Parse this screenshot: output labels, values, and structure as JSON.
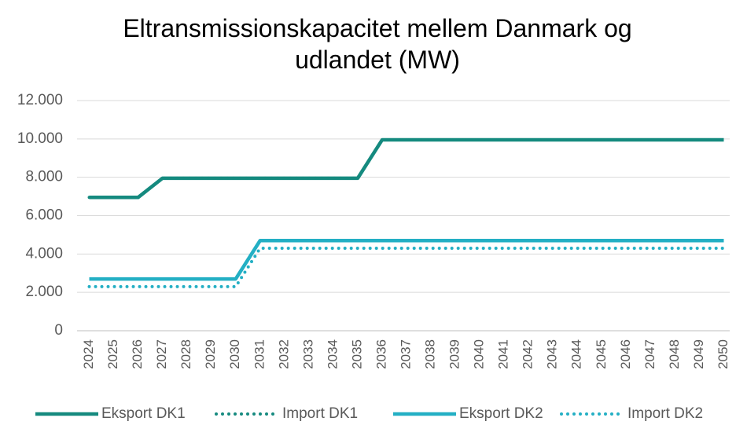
{
  "chart_data": {
    "type": "line",
    "title": "Eltransmissionskapacitet mellem Danmark og udlandet (MW)",
    "categories": [
      "2024",
      "2025",
      "2026",
      "2027",
      "2028",
      "2029",
      "2030",
      "2031",
      "2032",
      "2033",
      "2034",
      "2035",
      "2036",
      "2037",
      "2038",
      "2039",
      "2040",
      "2041",
      "2042",
      "2043",
      "2044",
      "2045",
      "2046",
      "2047",
      "2048",
      "2049",
      "2050"
    ],
    "series": [
      {
        "name": "Eksport DK1",
        "color": "#158a7f",
        "style": "solid",
        "values": [
          6950,
          6950,
          6950,
          7950,
          7950,
          7950,
          7950,
          7950,
          7950,
          7950,
          7950,
          7950,
          9950,
          9950,
          9950,
          9950,
          9950,
          9950,
          9950,
          9950,
          9950,
          9950,
          9950,
          9950,
          9950,
          9950,
          9950
        ]
      },
      {
        "name": "Import DK1",
        "color": "#158a7f",
        "style": "dotted",
        "values": [
          6950,
          6950,
          6950,
          7950,
          7950,
          7950,
          7950,
          7950,
          7950,
          7950,
          7950,
          7950,
          9950,
          9950,
          9950,
          9950,
          9950,
          9950,
          9950,
          9950,
          9950,
          9950,
          9950,
          9950,
          9950,
          9950,
          9950
        ]
      },
      {
        "name": "Eksport DK2",
        "color": "#23afc4",
        "style": "solid",
        "values": [
          2700,
          2700,
          2700,
          2700,
          2700,
          2700,
          2700,
          4700,
          4700,
          4700,
          4700,
          4700,
          4700,
          4700,
          4700,
          4700,
          4700,
          4700,
          4700,
          4700,
          4700,
          4700,
          4700,
          4700,
          4700,
          4700,
          4700
        ]
      },
      {
        "name": "Import DK2",
        "color": "#23afc4",
        "style": "dotted",
        "values": [
          2300,
          2300,
          2300,
          2300,
          2300,
          2300,
          2300,
          4300,
          4300,
          4300,
          4300,
          4300,
          4300,
          4300,
          4300,
          4300,
          4300,
          4300,
          4300,
          4300,
          4300,
          4300,
          4300,
          4300,
          4300,
          4300,
          4300
        ]
      }
    ],
    "ylim": [
      0,
      12000
    ],
    "yticks": [
      0,
      {
        "value": 2000,
        "label": "2.000"
      },
      {
        "value": 4000,
        "label": "4.000"
      },
      {
        "value": 6000,
        "label": "6.000"
      },
      {
        "value": 8000,
        "label": "8.000"
      },
      {
        "value": 10000,
        "label": "10.000"
      },
      {
        "value": 12000,
        "label": "12.000"
      }
    ],
    "grid": true,
    "legend": "bottom"
  }
}
